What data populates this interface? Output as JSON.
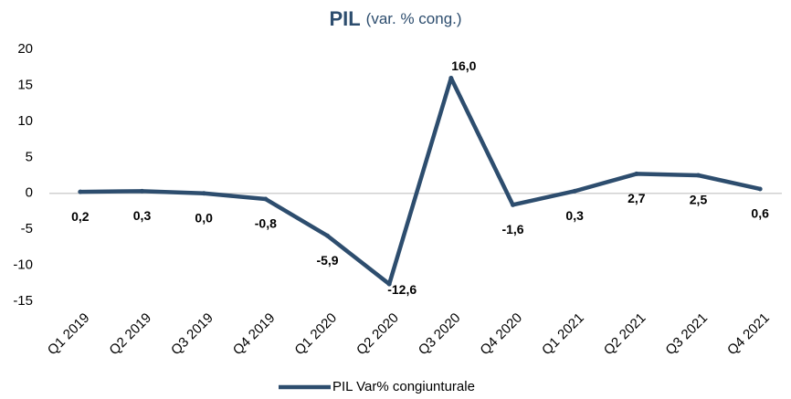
{
  "chart_data": {
    "type": "line",
    "title": "PIL",
    "subtitle": "(var. % cong.)",
    "categories": [
      "Q1 2019",
      "Q2 2019",
      "Q3 2019",
      "Q4 2019",
      "Q1 2020",
      "Q2 2020",
      "Q3 2020",
      "Q4 2020",
      "Q1 2021",
      "Q2 2021",
      "Q3 2021",
      "Q4 2021"
    ],
    "series": [
      {
        "name": "PIL Var% congiunturale",
        "color": "#2d4d6e",
        "values": [
          0.2,
          0.3,
          0.0,
          -0.8,
          -5.9,
          -12.6,
          16.0,
          -1.6,
          0.3,
          2.7,
          2.5,
          0.6
        ],
        "value_labels": [
          "0,2",
          "0,3",
          "0,0",
          "-0,8",
          "-5,9",
          "-12,6",
          "16,0",
          "-1,6",
          "0,3",
          "2,7",
          "2,5",
          "0,6"
        ]
      }
    ],
    "ylim": [
      -15,
      20
    ],
    "yticks": [
      -15,
      -10,
      -5,
      0,
      5,
      10,
      15,
      20
    ],
    "grid": false,
    "legend": "bottom"
  }
}
